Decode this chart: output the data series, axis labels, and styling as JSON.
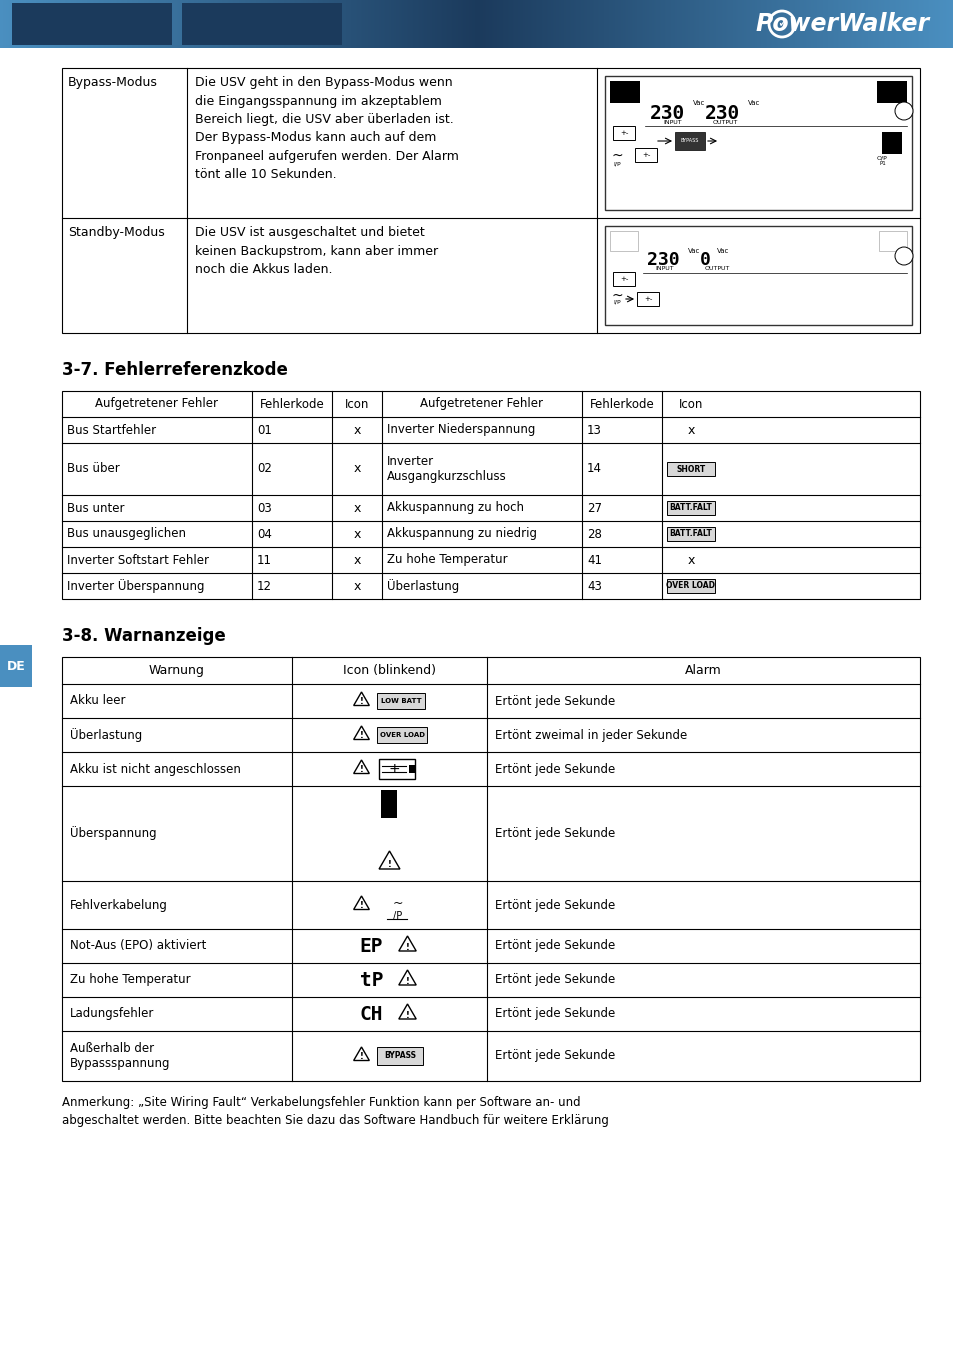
{
  "bg_color": "#ffffff",
  "title1": "3-7. Fehlerreferenzkode",
  "title2": "3-8. Warnanzeige",
  "bypass_col1": "Bypass-Modus",
  "bypass_col2": "Die USV geht in den Bypass-Modus wenn\ndie Eingangsspannung im akzeptablem\nBereich liegt, die USV aber überladen ist.\nDer Bypass-Modus kann auch auf dem\nFronpaneel aufgerufen werden. Der Alarm\ntönt alle 10 Sekunden.",
  "standby_col1": "Standby-Modus",
  "standby_col2": "Die USV ist ausgeschaltet und bietet\nkeinen Backupstrom, kann aber immer\nnoch die Akkus laden.",
  "error_headers": [
    "Aufgetretener Fehler",
    "Fehlerkode",
    "Icon",
    "Aufgetretener Fehler",
    "Fehlerkode",
    "Icon"
  ],
  "error_rows": [
    [
      "Bus Startfehler",
      "01",
      "x",
      "Inverter Niederspannung",
      "13",
      "x"
    ],
    [
      "Bus über",
      "02",
      "x",
      "Inverter\nAusgangkurzschluss",
      "14",
      "SHORT"
    ],
    [
      "Bus unter",
      "03",
      "x",
      "Akkuspannung zu hoch",
      "27",
      "BATT.FALT"
    ],
    [
      "Bus unausgeglichen",
      "04",
      "x",
      "Akkuspannung zu niedrig",
      "28",
      "BATT.FALT"
    ],
    [
      "Inverter Softstart Fehler",
      "11",
      "x",
      "Zu hohe Temperatur",
      "41",
      "x"
    ],
    [
      "Inverter Überspannung",
      "12",
      "x",
      "Überlastung",
      "43",
      "OVER LOAD"
    ]
  ],
  "warn_headers": [
    "Warnung",
    "Icon (blinkend)",
    "Alarm"
  ],
  "warn_rows": [
    [
      "Akku leer",
      "LOW BATT",
      "Ertönt jede Sekunde"
    ],
    [
      "Überlastung",
      "OVER LOAD",
      "Ertönt zweimal in jeder Sekunde"
    ],
    [
      "Akku ist nicht angeschlossen",
      "BATT_CONN",
      "Ertönt jede Sekunde"
    ],
    [
      "Überspannung",
      "VOLT_ICON",
      "Ertönt jede Sekunde"
    ],
    [
      "Fehlverkabelung",
      "WIRING",
      "Ertönt jede Sekunde"
    ],
    [
      "Not-Aus (EPO) aktiviert",
      "EP_ICON",
      "Ertönt jede Sekunde"
    ],
    [
      "Zu hohe Temperatur",
      "TEMP_ICON",
      "Ertönt jede Sekunde"
    ],
    [
      "Ladungsfehler",
      "CH_ICON",
      "Ertönt jede Sekunde"
    ],
    [
      "Außerhalb der\nBypassspannung",
      "BYPASS_ICON",
      "Ertönt jede Sekunde"
    ]
  ],
  "note_text": "Anmerkung: „Site Wiring Fault“ Verkabelungsfehler Funktion kann per Software an- und\nabgeschaltet werden. Bitte beachten Sie dazu das Software Handbuch für weitere Erklärung",
  "header_dark": "#1b3a5c",
  "header_light": "#4a8fc0"
}
